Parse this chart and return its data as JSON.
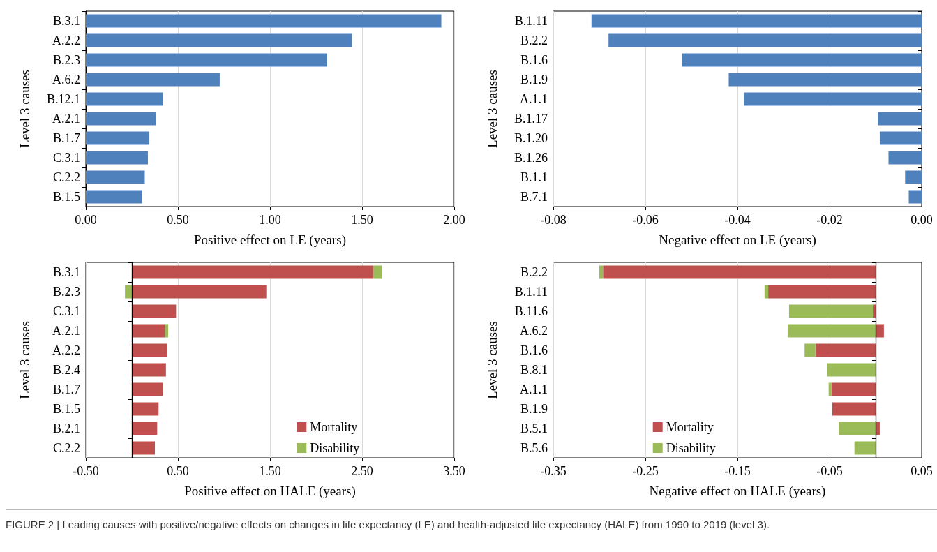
{
  "chart_data": [
    {
      "type": "bar",
      "orientation": "horizontal",
      "categories": [
        "B.3.1",
        "A.2.2",
        "B.2.3",
        "A.6.2",
        "B.12.1",
        "A.2.1",
        "B.1.7",
        "C.3.1",
        "C.2.2",
        "B.1.5"
      ],
      "color": "#4f81bd",
      "values": [
        1.93,
        1.445,
        1.31,
        0.727,
        0.42,
        0.379,
        0.345,
        0.337,
        0.32,
        0.306
      ],
      "xlim": [
        0,
        2
      ],
      "xticks": [
        {
          "value": 0,
          "label": "0.00"
        },
        {
          "value": 0.5,
          "label": "0.50"
        },
        {
          "value": 1,
          "label": "1.00"
        },
        {
          "value": 1.5,
          "label": "1.50"
        },
        {
          "value": 2,
          "label": "2.00"
        }
      ],
      "xlabel": "Positive effect on LE (years)",
      "ylabel": "Level 3 causes",
      "grid": "x"
    },
    {
      "type": "bar",
      "orientation": "horizontal",
      "categories": [
        "B.1.11",
        "B.2.2",
        "B.1.6",
        "B.1.9",
        "A.1.1",
        "B.1.17",
        "B.1.20",
        "B.1.26",
        "B.1.1",
        "B.7.1"
      ],
      "color": "#4f81bd",
      "values": [
        -0.0717,
        -0.068,
        -0.0521,
        -0.0419,
        -0.0386,
        -0.0095,
        -0.0091,
        -0.0072,
        -0.0036,
        -0.0028
      ],
      "xlim": [
        -0.08,
        0
      ],
      "xticks": [
        {
          "value": -0.08,
          "label": "-0.08"
        },
        {
          "value": -0.06,
          "label": "-0.06"
        },
        {
          "value": -0.04,
          "label": "-0.04"
        },
        {
          "value": -0.02,
          "label": "-0.02"
        },
        {
          "value": 0,
          "label": "0.00"
        }
      ],
      "xlabel": "Negative effect on LE (years)",
      "ylabel": "Level 3 causes",
      "grid": "x"
    },
    {
      "type": "bar",
      "orientation": "horizontal",
      "stacked": true,
      "categories": [
        "B.3.1",
        "B.2.3",
        "C.3.1",
        "A.2.1",
        "A.2.2",
        "B.2.4",
        "B.1.7",
        "B.1.5",
        "B.2.1",
        "C.2.2"
      ],
      "series": [
        {
          "name": "Mortality",
          "color": "#c0504d",
          "values": [
            2.62,
            1.46,
            0.48,
            0.36,
            0.385,
            0.37,
            0.34,
            0.29,
            0.275,
            0.25
          ]
        },
        {
          "name": "Disability",
          "color": "#9bbb59",
          "values": [
            0.094,
            -0.075,
            0,
            0.035,
            0,
            0,
            0,
            0,
            0,
            0
          ]
        }
      ],
      "xlim": [
        -0.5,
        3.5
      ],
      "xticks": [
        {
          "value": -0.5,
          "label": "-0.50"
        },
        {
          "value": 0.5,
          "label": "0.50"
        },
        {
          "value": 1.5,
          "label": "1.50"
        },
        {
          "value": 2.5,
          "label": "2.50"
        },
        {
          "value": 3.5,
          "label": "3.50"
        }
      ],
      "xlabel": "Positive effect on HALE (years)",
      "ylabel": "Level 3 causes",
      "grid": "x",
      "legend": "bottom",
      "ref_lines": [
        {
          "axis": "x",
          "value": 0,
          "color": "#000000"
        }
      ]
    },
    {
      "type": "bar",
      "orientation": "horizontal",
      "stacked": true,
      "categories": [
        "B.2.2",
        "B.1.11",
        "B.11.6",
        "A.6.2",
        "B.1.6",
        "B.8.1",
        "A.1.1",
        "B.1.9",
        "B.5.1",
        "B.5.6"
      ],
      "series": [
        {
          "name": "Mortality",
          "color": "#c0504d",
          "values": [
            -0.296,
            -0.1166,
            -0.003,
            0.009,
            -0.0654,
            0,
            -0.048,
            -0.047,
            0.0045,
            0
          ]
        },
        {
          "name": "Disability",
          "color": "#9bbb59",
          "values": [
            -0.004,
            -0.004,
            -0.091,
            -0.0955,
            -0.0117,
            -0.0525,
            -0.003,
            0,
            -0.04,
            -0.023
          ]
        }
      ],
      "xlim": [
        -0.35,
        0.05
      ],
      "xticks": [
        {
          "value": -0.35,
          "label": "-0.35"
        },
        {
          "value": -0.25,
          "label": "-0.25"
        },
        {
          "value": -0.15,
          "label": "-0.15"
        },
        {
          "value": -0.05,
          "label": "-0.05"
        },
        {
          "value": 0.05,
          "label": "0.05"
        }
      ],
      "xlabel": "Negative effect on HALE (years)",
      "ylabel": "Level 3 causes",
      "grid": "x",
      "legend": "bottom left",
      "ref_lines": [
        {
          "axis": "x",
          "value": 0,
          "color": "#000000"
        }
      ],
      "annotations": [
        "FIGURE 2 | Leading causes with positive/negative effects on changes in life expectancy (LE) and health-adjusted life expectancy (HALE) from 1990 to 2019 (level 3)."
      ]
    }
  ]
}
